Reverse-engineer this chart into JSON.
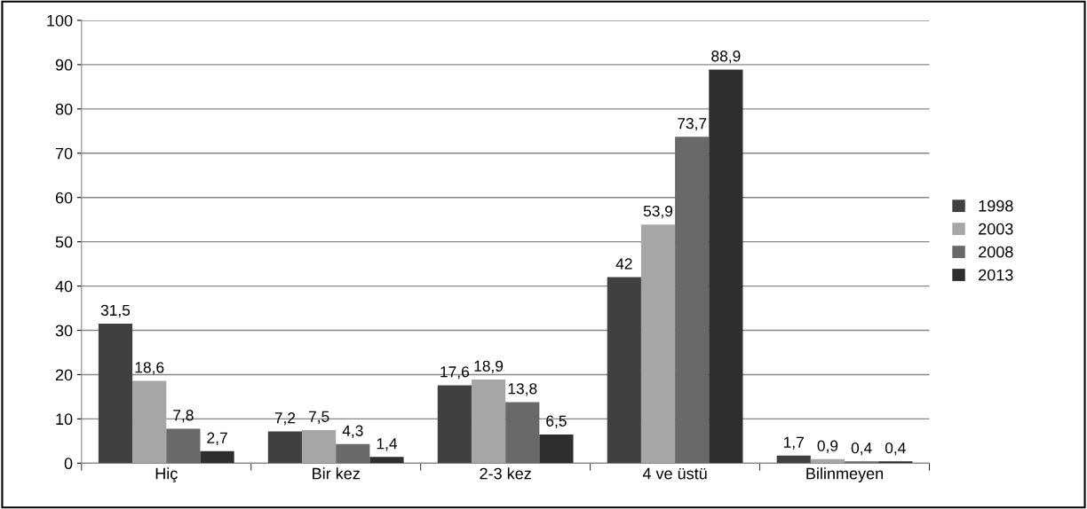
{
  "chart_data": {
    "type": "bar",
    "categories": [
      "Hiç",
      "Bir kez",
      "2-3 kez",
      "4 ve üstü",
      "Bilinmeyen"
    ],
    "series": [
      {
        "name": "1998",
        "color": "#404040",
        "values": [
          31.5,
          7.2,
          17.6,
          42,
          1.7
        ],
        "value_labels": [
          "31,5",
          "7,2",
          "17,6",
          "42",
          "1,7"
        ]
      },
      {
        "name": "2003",
        "color": "#a6a6a6",
        "values": [
          18.6,
          7.5,
          18.9,
          53.9,
          0.9
        ],
        "value_labels": [
          "18,6",
          "7,5",
          "18,9",
          "53,9",
          "0,9"
        ]
      },
      {
        "name": "2008",
        "color": "#696969",
        "values": [
          7.8,
          4.3,
          13.8,
          73.7,
          0.4
        ],
        "value_labels": [
          "7,8",
          "4,3",
          "13,8",
          "73,7",
          "0,4"
        ]
      },
      {
        "name": "2013",
        "color": "#2e2e2e",
        "values": [
          2.7,
          1.4,
          6.5,
          88.9,
          0.4
        ],
        "value_labels": [
          "2,7",
          "1,4",
          "6,5",
          "88,9",
          "0,4"
        ]
      }
    ],
    "ylim": [
      0,
      100
    ],
    "yticks": [
      0,
      10,
      20,
      30,
      40,
      50,
      60,
      70,
      80,
      90,
      100
    ],
    "grid": "y",
    "legend": "right"
  }
}
